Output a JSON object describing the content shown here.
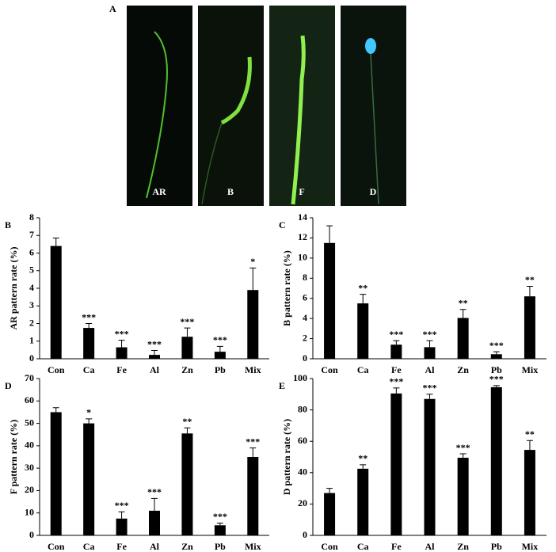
{
  "panel_a": {
    "label": "A",
    "images": [
      "AR",
      "B",
      "F",
      "D"
    ]
  },
  "chart_data": [
    {
      "type": "bar",
      "panel": "B",
      "ylabel": "AR pattern rate (%)",
      "color": "#000000",
      "categories": [
        "Con",
        "Ca",
        "Fe",
        "Al",
        "Zn",
        "Pb",
        "Mix"
      ],
      "values": [
        6.4,
        1.75,
        0.65,
        0.22,
        1.25,
        0.4,
        3.9
      ],
      "errors": [
        0.45,
        0.25,
        0.4,
        0.25,
        0.5,
        0.3,
        1.25
      ],
      "annotations": [
        null,
        "***",
        "***",
        "***",
        "***",
        "***",
        "*"
      ],
      "ylim": [
        0,
        8
      ],
      "yticks": [
        0,
        1,
        2,
        3,
        4,
        5,
        6,
        7,
        8
      ]
    },
    {
      "type": "bar",
      "panel": "C",
      "ylabel": "B pattern rate (%)",
      "color": "#000000",
      "categories": [
        "Con",
        "Ca",
        "Fe",
        "Al",
        "Zn",
        "Pb",
        "Mix"
      ],
      "values": [
        11.5,
        5.5,
        1.4,
        1.15,
        4.05,
        0.45,
        6.2
      ],
      "errors": [
        1.7,
        0.9,
        0.4,
        0.65,
        0.85,
        0.25,
        1.0
      ],
      "annotations": [
        null,
        "**",
        "***",
        "***",
        "**",
        "***",
        "**"
      ],
      "ylim": [
        0,
        14
      ],
      "yticks": [
        0,
        2,
        4,
        6,
        8,
        10,
        12,
        14
      ]
    },
    {
      "type": "bar",
      "panel": "D",
      "ylabel": "F pattern rate (%)",
      "color": "#000000",
      "categories": [
        "Con",
        "Ca",
        "Fe",
        "Al",
        "Zn",
        "Pb",
        "Mix"
      ],
      "values": [
        55,
        50,
        7.5,
        11,
        45.5,
        4.5,
        35
      ],
      "errors": [
        2,
        2,
        3,
        5.5,
        2.5,
        1,
        4
      ],
      "annotations": [
        null,
        "*",
        "***",
        "***",
        "**",
        "***",
        "***"
      ],
      "ylim": [
        0,
        70
      ],
      "yticks": [
        0,
        10,
        20,
        30,
        40,
        50,
        60,
        70
      ]
    },
    {
      "type": "bar",
      "panel": "E",
      "ylabel": "D pattern rate (%)",
      "color": "#000000",
      "categories": [
        "Con",
        "Ca",
        "Fe",
        "Al",
        "Zn",
        "Pb",
        "Mix"
      ],
      "values": [
        27,
        42.5,
        90.5,
        87,
        49.5,
        94.5,
        54.5
      ],
      "errors": [
        3,
        2.5,
        3.5,
        3,
        2.5,
        1,
        6
      ],
      "annotations": [
        null,
        "**",
        "***",
        "***",
        "***",
        "***",
        "**"
      ],
      "ylim": [
        0,
        100
      ],
      "yticks": [
        0,
        20,
        40,
        60,
        80,
        100
      ]
    }
  ]
}
